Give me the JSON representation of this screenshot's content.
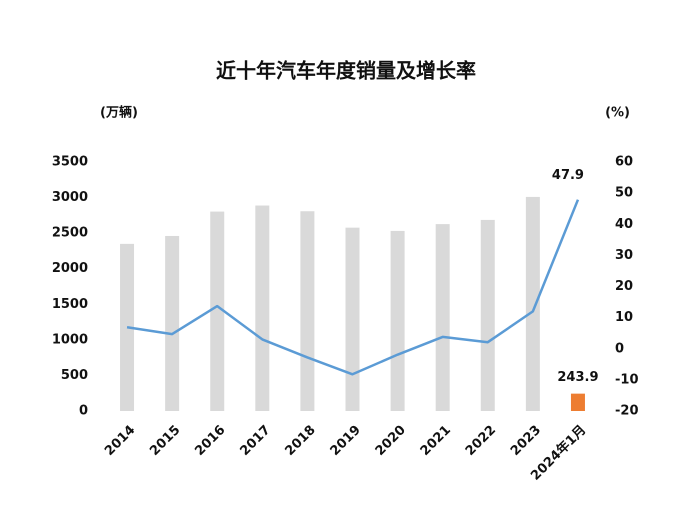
{
  "chart_data": {
    "type": "bar-line",
    "title": "近十年汽车年度销量及增长率",
    "y_label": "(万辆)",
    "y2_label": "(%)",
    "categories": [
      "2014",
      "2015",
      "2016",
      "2017",
      "2018",
      "2019",
      "2020",
      "2021",
      "2022",
      "2023",
      "2024年1月"
    ],
    "series": [
      {
        "type": "bar",
        "colors": [
          "#d9d9d9",
          "#d9d9d9",
          "#d9d9d9",
          "#d9d9d9",
          "#d9d9d9",
          "#d9d9d9",
          "#d9d9d9",
          "#d9d9d9",
          "#d9d9d9",
          "#d9d9d9",
          "#ed7d31"
        ],
        "values": [
          2349,
          2460,
          2803,
          2888,
          2808,
          2577,
          2531,
          2627,
          2686,
          3009,
          243.9
        ]
      },
      {
        "type": "line",
        "axis": "y2",
        "color": "#5b9bd5",
        "values": [
          6.9,
          4.7,
          13.7,
          3.0,
          -2.8,
          -8.2,
          -1.9,
          3.8,
          2.1,
          12.0,
          47.9
        ]
      }
    ],
    "ylim": [
      0,
      3500
    ],
    "yticks": [
      0,
      500,
      1000,
      1500,
      2000,
      2500,
      3000,
      3500
    ],
    "y2lim": [
      -20,
      60
    ],
    "y2ticks": [
      -20,
      -10,
      0,
      10,
      20,
      30,
      40,
      50,
      60
    ]
  }
}
